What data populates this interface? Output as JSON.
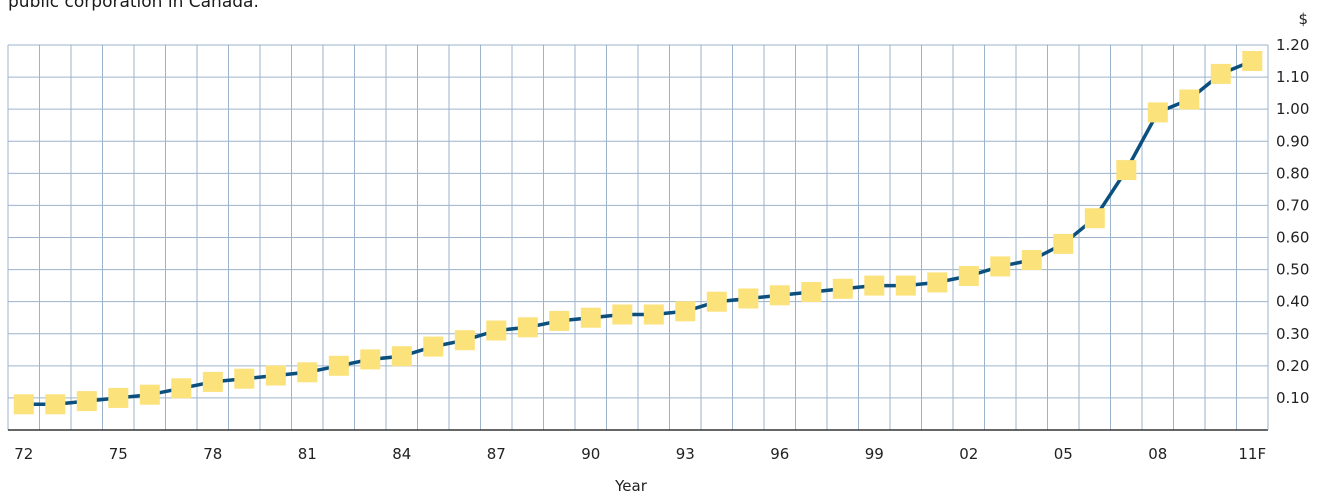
{
  "caption": "public corporation in Canada.",
  "colors": {
    "grid": "#9db3cc",
    "line": "#0a4f7e",
    "marker": "#fbe27a",
    "axis": "#333333"
  },
  "chart_data": {
    "type": "line",
    "xlabel": "Year",
    "ylabel": "$",
    "ylim": [
      0,
      1.2
    ],
    "yticks": [
      0.1,
      0.2,
      0.3,
      0.4,
      0.5,
      0.6,
      0.7,
      0.8,
      0.9,
      1.0,
      1.1,
      1.2
    ],
    "ytick_labels": [
      "0.10",
      "0.20",
      "0.30",
      "0.40",
      "0.50",
      "0.60",
      "0.70",
      "0.80",
      "0.90",
      "1.00",
      "1.10",
      "1.20"
    ],
    "xtick_labels": [
      "72",
      "75",
      "78",
      "81",
      "84",
      "87",
      "90",
      "93",
      "96",
      "99",
      "02",
      "05",
      "08",
      "11F"
    ],
    "x": [
      "72",
      "73",
      "74",
      "75",
      "76",
      "77",
      "78",
      "79",
      "80",
      "81",
      "82",
      "83",
      "84",
      "85",
      "86",
      "87",
      "88",
      "89",
      "90",
      "91",
      "92",
      "93",
      "94",
      "95",
      "96",
      "97",
      "98",
      "99",
      "00",
      "01",
      "02",
      "03",
      "04",
      "05",
      "06",
      "07",
      "08",
      "09",
      "10",
      "11F"
    ],
    "series": [
      {
        "values": [
          0.08,
          0.08,
          0.09,
          0.1,
          0.11,
          0.13,
          0.15,
          0.16,
          0.17,
          0.18,
          0.2,
          0.22,
          0.23,
          0.26,
          0.28,
          0.31,
          0.32,
          0.34,
          0.35,
          0.36,
          0.36,
          0.37,
          0.4,
          0.41,
          0.42,
          0.43,
          0.44,
          0.45,
          0.45,
          0.46,
          0.48,
          0.51,
          0.53,
          0.58,
          0.66,
          0.81,
          0.99,
          1.03,
          1.11,
          1.15
        ]
      }
    ],
    "grid": true,
    "y_axis_side": "right"
  }
}
